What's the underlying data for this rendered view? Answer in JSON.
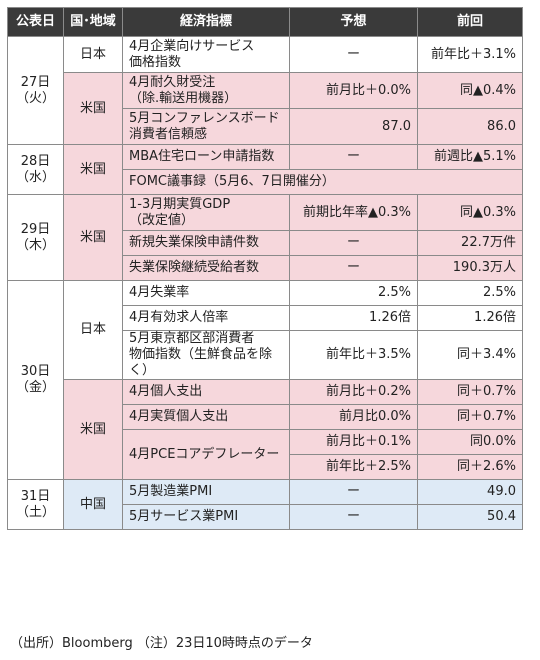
{
  "headers": {
    "date": "公表日",
    "region": "国･地域",
    "indicator": "経済指標",
    "forecast": "予想",
    "previous": "前回"
  },
  "groups": [
    {
      "date": "27日\n（火）",
      "regions": [
        {
          "name": "日本",
          "color": "jp",
          "rows": [
            {
              "indicator": "4月企業向けサービス\n価格指数",
              "forecast": "ー",
              "previous": "前年比＋3.1%",
              "h": "h2"
            }
          ]
        },
        {
          "name": "米国",
          "color": "us",
          "rows": [
            {
              "indicator": "4月耐久財受注\n（除.輸送用機器）",
              "forecast": "前月比＋0.0%",
              "previous": "同▲0.4%",
              "h": "h2"
            },
            {
              "indicator": "5月コンファレンスボード\n消費者信頼感",
              "forecast": "87.0",
              "previous": "86.0",
              "h": "h2"
            }
          ]
        }
      ]
    },
    {
      "date": "28日\n（水）",
      "regions": [
        {
          "name": "米国",
          "color": "us",
          "rows": [
            {
              "indicator": "MBA住宅ローン申請指数",
              "forecast": "ー",
              "previous": "前週比▲5.1%",
              "h": "h1"
            },
            {
              "indicator": "FOMC議事録（5月6、7日開催分）",
              "span": true,
              "h": "h1"
            }
          ]
        }
      ]
    },
    {
      "date": "29日\n（木）",
      "regions": [
        {
          "name": "米国",
          "color": "us",
          "rows": [
            {
              "indicator": "1-3月期実質GDP\n（改定値）",
              "forecast": "前期比年率▲0.3%",
              "previous": "同▲0.3%",
              "h": "h2"
            },
            {
              "indicator": "新規失業保険申請件数",
              "forecast": "ー",
              "previous": "22.7万件",
              "h": "h1"
            },
            {
              "indicator": "失業保険継続受給者数",
              "forecast": "ー",
              "previous": "190.3万人",
              "h": "h1"
            }
          ]
        }
      ]
    },
    {
      "date": "30日\n（金）",
      "regions": [
        {
          "name": "日本",
          "color": "jp",
          "rows": [
            {
              "indicator": "4月失業率",
              "forecast": "2.5%",
              "previous": "2.5%",
              "h": "h1"
            },
            {
              "indicator": "4月有効求人倍率",
              "forecast": "1.26倍",
              "previous": "1.26倍",
              "h": "h1"
            },
            {
              "indicator": "5月東京都区部消費者\n物価指数（生鮮食品を除く）",
              "forecast": "前年比＋3.5%",
              "previous": "同＋3.4%",
              "h": "h2"
            }
          ]
        },
        {
          "name": "米国",
          "color": "us",
          "rows": [
            {
              "indicator": "4月個人支出",
              "forecast": "前月比＋0.2%",
              "previous": "同＋0.7%",
              "h": "h1"
            },
            {
              "indicator": "4月実質個人支出",
              "forecast": "前月比0.0%",
              "previous": "同＋0.7%",
              "h": "h1"
            },
            {
              "indicator": "4月PCEコアデフレーター",
              "forecast": "前月比＋0.1%",
              "previous": "同0.0%",
              "h": "h1",
              "ind_rowspan": 2
            },
            {
              "indicator": "",
              "forecast": "前年比＋2.5%",
              "previous": "同＋2.6%",
              "h": "h1",
              "cont": true
            }
          ]
        }
      ]
    },
    {
      "date": "31日\n（土）",
      "regions": [
        {
          "name": "中国",
          "color": "cn",
          "rows": [
            {
              "indicator": "5月製造業PMI",
              "forecast": "ー",
              "previous": "49.0",
              "h": "h1"
            },
            {
              "indicator": "5月サービス業PMI",
              "forecast": "ー",
              "previous": "50.4",
              "h": "h1"
            }
          ]
        }
      ]
    }
  ],
  "footer": "（出所）Bloomberg （注）23日10時時点のデータ"
}
